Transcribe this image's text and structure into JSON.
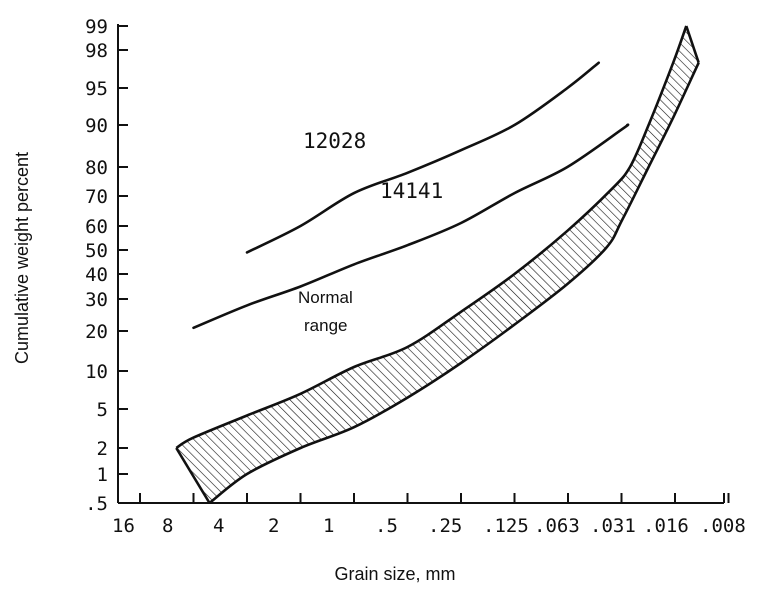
{
  "chart_data": {
    "type": "line",
    "xlabel": "Grain size, mm",
    "ylabel": "Cumulative weight percent",
    "x_ticks": [
      "16",
      "8",
      "4",
      "2",
      "1",
      ".5",
      ".25",
      ".125",
      ".063",
      ".031",
      ".016",
      ".008"
    ],
    "y_ticks": [
      ".5",
      "1",
      "2",
      "5",
      "10",
      "20",
      "30",
      "40",
      "50",
      "60",
      "70",
      "80",
      "90",
      "95",
      "98",
      "99"
    ],
    "x_scale": "log (phi), decreasing grain size to the right",
    "y_scale": "probability",
    "series": [
      {
        "name": "12028",
        "points": [
          [
            4,
            49
          ],
          [
            2,
            60
          ],
          [
            1,
            71
          ],
          [
            0.5,
            78
          ],
          [
            0.25,
            84
          ],
          [
            0.125,
            90
          ],
          [
            0.063,
            95
          ],
          [
            0.042,
            97
          ]
        ]
      },
      {
        "name": "14141",
        "points": [
          [
            8,
            21
          ],
          [
            4,
            28
          ],
          [
            2,
            35
          ],
          [
            1,
            44
          ],
          [
            0.5,
            52
          ],
          [
            0.25,
            61
          ],
          [
            0.125,
            71
          ],
          [
            0.063,
            80
          ],
          [
            0.031,
            89
          ],
          [
            0.029,
            90
          ]
        ]
      }
    ],
    "band": {
      "name": "Normal range",
      "upper": [
        [
          10,
          2
        ],
        [
          8,
          2.8
        ],
        [
          4,
          4.5
        ],
        [
          2,
          7
        ],
        [
          1,
          11
        ],
        [
          0.5,
          16
        ],
        [
          0.25,
          26
        ],
        [
          0.125,
          40
        ],
        [
          0.063,
          58
        ],
        [
          0.036,
          72
        ],
        [
          0.028,
          80
        ],
        [
          0.022,
          90
        ],
        [
          0.016,
          97
        ],
        [
          0.0135,
          99
        ]
      ],
      "lower": [
        [
          6.5,
          0.5
        ],
        [
          4,
          1
        ],
        [
          2,
          2
        ],
        [
          1,
          3.6
        ],
        [
          0.5,
          6.5
        ],
        [
          0.25,
          12
        ],
        [
          0.125,
          22
        ],
        [
          0.063,
          36
        ],
        [
          0.038,
          51
        ],
        [
          0.031,
          62
        ],
        [
          0.022,
          80
        ],
        [
          0.016,
          91
        ],
        [
          0.0115,
          97
        ]
      ]
    },
    "annotations": [
      "12028",
      "14141",
      "Normal",
      "range"
    ],
    "grid": false
  }
}
